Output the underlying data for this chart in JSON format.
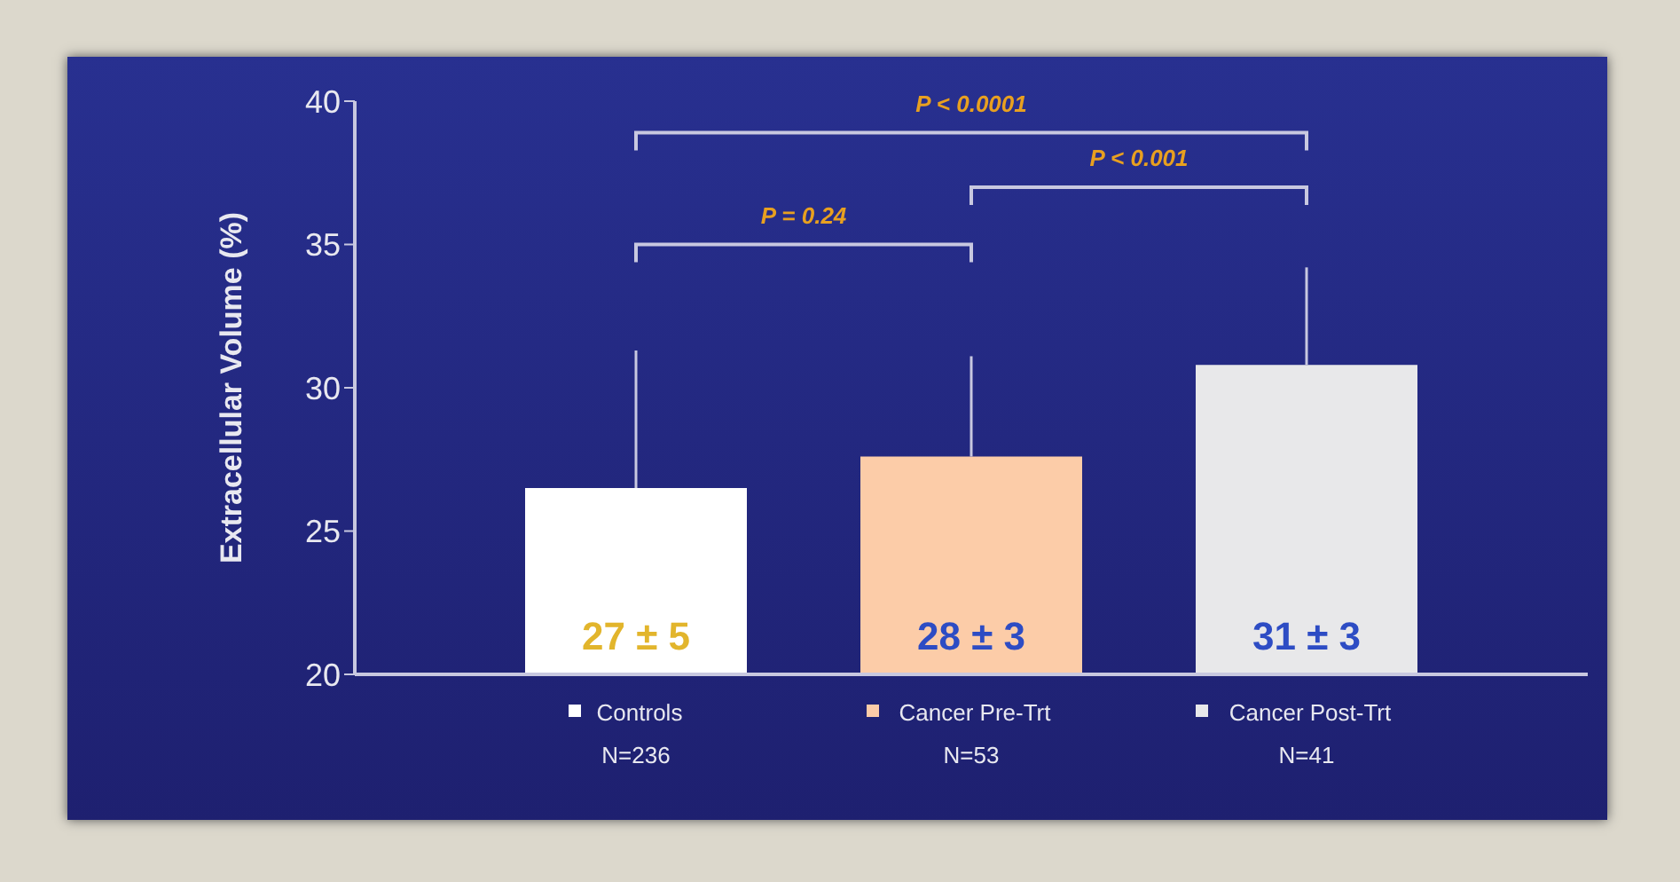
{
  "chart_data": {
    "type": "bar",
    "ylabel": "Extracellular Volume (%)",
    "categories": [
      "Controls",
      "Cancer Pre-Trt",
      "Cancer Post-Trt"
    ],
    "values": [
      26.5,
      27.6,
      30.8
    ],
    "colors": [
      "#ffffff",
      "#fccca8",
      "#e8e8ea"
    ],
    "errors": [
      [
        26.5,
        31.3
      ],
      [
        27.6,
        31.1
      ],
      [
        30.8,
        34.2
      ]
    ],
    "value_labels": [
      "27 ± 5",
      "28 ± 3",
      "31 ± 3"
    ],
    "ylim": [
      20,
      40
    ],
    "yticks": [
      20,
      25,
      30,
      35,
      40
    ],
    "annotations": [
      "P = 0.24",
      "P < 0.001",
      "P < 0.0001",
      "N=236",
      "N=53",
      "N=41"
    ]
  }
}
